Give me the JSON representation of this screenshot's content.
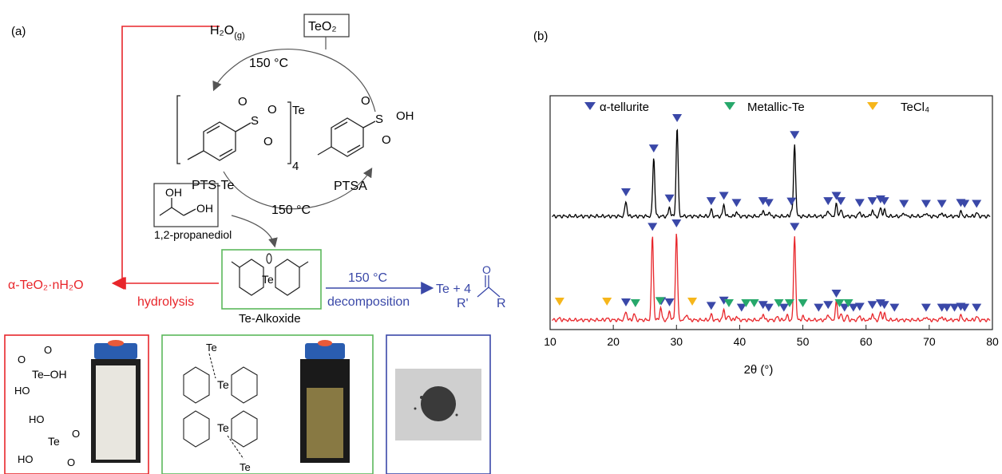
{
  "panel_a": {
    "label": "(a)",
    "water": "H₂O",
    "water_sub": "(g)",
    "teo2": "TeO₂",
    "temp_top": "150 °C",
    "temp_bottom": "150 °C",
    "temp_decomp": "150 °C",
    "pts_te": "PTS-Te",
    "ptsa": "PTSA",
    "propanediol": "1,2-propanediol",
    "te_alkoxide": "Te-Alkoxide",
    "product_alpha": "α-TeO₂·nH₂O",
    "hydrolysis": "hydrolysis",
    "decomposition": "decomposition",
    "decomp_product": "Te + 4",
    "atom_o": "O",
    "atom_s": "S",
    "atom_te": "Te",
    "oh": "OH",
    "ho": "HO",
    "te_oh": "Te–OH",
    "subscript_4": "4",
    "r_prime": "R'",
    "r": "R",
    "colors": {
      "red": "#e8262b",
      "blue": "#3a48a8",
      "green": "#5cb85c"
    }
  },
  "chart_data": {
    "type": "line",
    "panel_label": "(b)",
    "xlabel": "2θ (°)",
    "xlim": [
      10,
      80
    ],
    "xticks": [
      10,
      20,
      30,
      40,
      50,
      60,
      70,
      80
    ],
    "legend": [
      {
        "name": "α-tellurite",
        "color": "#3a48a8"
      },
      {
        "name": "Metallic-Te",
        "color": "#27a86b"
      },
      {
        "name": "TeCl₄",
        "color": "#f6b61b"
      }
    ],
    "series": [
      {
        "color": "#000000",
        "peaks": [
          [
            22.0,
            0.17
          ],
          [
            26.4,
            0.66
          ],
          [
            28.9,
            0.1
          ],
          [
            30.1,
            1.0
          ],
          [
            35.5,
            0.07
          ],
          [
            37.5,
            0.13
          ],
          [
            39.5,
            0.05
          ],
          [
            43.7,
            0.07
          ],
          [
            44.6,
            0.05
          ],
          [
            48.2,
            0.06
          ],
          [
            48.7,
            0.81
          ],
          [
            54.0,
            0.07
          ],
          [
            55.3,
            0.13
          ],
          [
            56.0,
            0.07
          ],
          [
            59.0,
            0.05
          ],
          [
            61.0,
            0.07
          ],
          [
            62.3,
            0.09
          ],
          [
            62.9,
            0.07
          ],
          [
            66.0,
            0.04
          ],
          [
            69.5,
            0.04
          ],
          [
            72.0,
            0.04
          ],
          [
            75.0,
            0.05
          ],
          [
            77.5,
            0.04
          ]
        ]
      },
      {
        "color": "#e8262b",
        "peaks": [
          [
            11.5,
            0.02
          ],
          [
            19.0,
            0.02
          ],
          [
            22.0,
            0.1
          ],
          [
            23.3,
            0.07
          ],
          [
            26.2,
            0.96
          ],
          [
            27.5,
            0.14
          ],
          [
            28.9,
            0.1
          ],
          [
            30.0,
            1.0
          ],
          [
            31.6,
            0.07
          ],
          [
            35.5,
            0.06
          ],
          [
            37.5,
            0.12
          ],
          [
            38.3,
            0.05
          ],
          [
            39.5,
            0.04
          ],
          [
            43.7,
            0.07
          ],
          [
            46.0,
            0.04
          ],
          [
            47.5,
            0.05
          ],
          [
            48.7,
            0.96
          ],
          [
            50.0,
            0.04
          ],
          [
            54.0,
            0.07
          ],
          [
            55.3,
            0.2
          ],
          [
            56.0,
            0.07
          ],
          [
            57.0,
            0.05
          ],
          [
            59.0,
            0.05
          ],
          [
            61.0,
            0.07
          ],
          [
            62.3,
            0.09
          ],
          [
            62.9,
            0.07
          ],
          [
            69.5,
            0.04
          ],
          [
            72.0,
            0.04
          ],
          [
            75.0,
            0.05
          ],
          [
            77.5,
            0.04
          ]
        ]
      }
    ],
    "markers": {
      "black": {
        "alpha": [
          22.0,
          26.4,
          28.9,
          30.1,
          35.5,
          37.5,
          39.5,
          43.7,
          44.6,
          48.2,
          48.7,
          54.0,
          55.3,
          56.0,
          59.0,
          61.0,
          62.3,
          62.9,
          66.0,
          69.5,
          72.0,
          75.0,
          75.6,
          77.5
        ]
      },
      "red": {
        "alpha": [
          22.0,
          26.2,
          27.6,
          28.9,
          30.0,
          35.5,
          37.5,
          40.3,
          43.7,
          44.6,
          47.0,
          48.7,
          52.5,
          54.0,
          55.3,
          56.6,
          58.0,
          59.0,
          61.0,
          62.3,
          62.9,
          64.5,
          69.5,
          72.0,
          72.8,
          74.0,
          75.0,
          75.6,
          77.5
        ],
        "metallic": [
          23.5,
          27.4,
          38.3,
          41.0,
          42.3,
          46.2,
          47.9,
          50.0,
          55.8,
          57.2
        ],
        "tecl4": [
          11.5,
          19.0,
          32.5
        ]
      }
    }
  }
}
